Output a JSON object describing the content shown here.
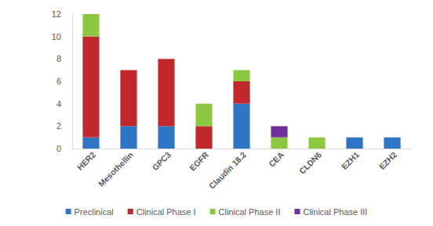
{
  "chart_data": {
    "type": "bar",
    "stacked": true,
    "legend": "bottom",
    "categories": [
      "HER2",
      "Mesothellin",
      "GPC3",
      "EGFR",
      "Claudin 18.2",
      "CEA",
      "CLDN6",
      "EZH1",
      "EZH2"
    ],
    "series": [
      {
        "name": "Preclinical",
        "color": "#2E75C6",
        "values": [
          1,
          2,
          2,
          0,
          4,
          0,
          0,
          1,
          1
        ]
      },
      {
        "name": "Clinical Phase I",
        "color": "#C0282D",
        "values": [
          9,
          5,
          6,
          2,
          2,
          0,
          0,
          0,
          0
        ]
      },
      {
        "name": "Clinical Phase II",
        "color": "#8DC63F",
        "values": [
          2,
          0,
          0,
          2,
          1,
          1,
          1,
          0,
          0
        ]
      },
      {
        "name": "Clinical Phase III",
        "color": "#7030A0",
        "values": [
          0,
          0,
          0,
          0,
          0,
          1,
          0,
          0,
          0
        ]
      }
    ],
    "ylim": [
      0,
      12
    ],
    "yticks": [
      0,
      2,
      4,
      6,
      8,
      10,
      12
    ],
    "grid": false
  }
}
